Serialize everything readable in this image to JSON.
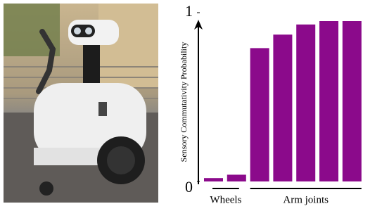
{
  "chart_data": {
    "type": "bar",
    "y_label": "Sensory Commutativity Probability",
    "groups": [
      {
        "label": "Wheels",
        "values": [
          0.02,
          0.04
        ]
      },
      {
        "label": "Arm joints",
        "values": [
          0.79,
          0.87,
          0.93,
          0.95,
          0.95
        ]
      }
    ],
    "color": "#8b0a8b",
    "ylim": [
      0,
      1
    ],
    "yticks": [
      0,
      1
    ],
    "grid": false
  }
}
